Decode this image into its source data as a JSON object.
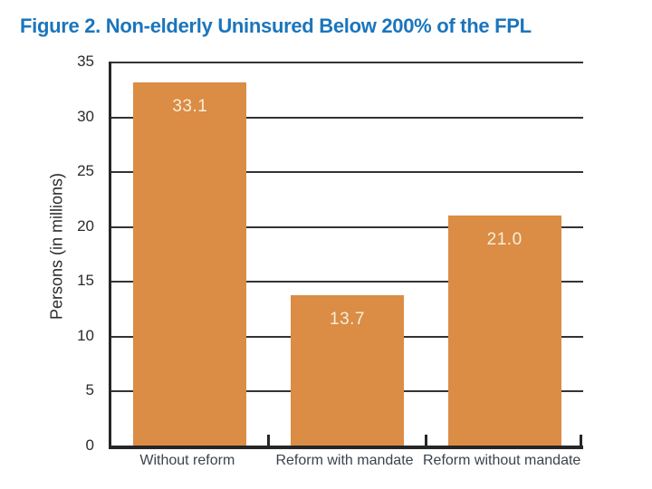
{
  "title": "Figure 2. Non-elderly Uninsured Below 200% of the FPL",
  "chart_data": {
    "type": "bar",
    "title": "Figure 2. Non-elderly Uninsured Below 200% of the FPL",
    "categories": [
      "Without reform",
      "Reform with mandate",
      "Reform without mandate"
    ],
    "values": [
      33.1,
      13.7,
      21.0
    ],
    "value_labels": [
      "33.1",
      "13.7",
      "21.0"
    ],
    "xlabel": "",
    "ylabel": "Persons (in millions)",
    "ylim": [
      0,
      35
    ],
    "y_ticks": [
      0,
      5,
      10,
      15,
      20,
      25,
      30,
      35
    ],
    "grid": true,
    "legend": false,
    "bar_color": "#DB8C45",
    "bar_label_color": "#F6EFD9",
    "title_color": "#1B75BC",
    "axis_color": "#262626"
  }
}
